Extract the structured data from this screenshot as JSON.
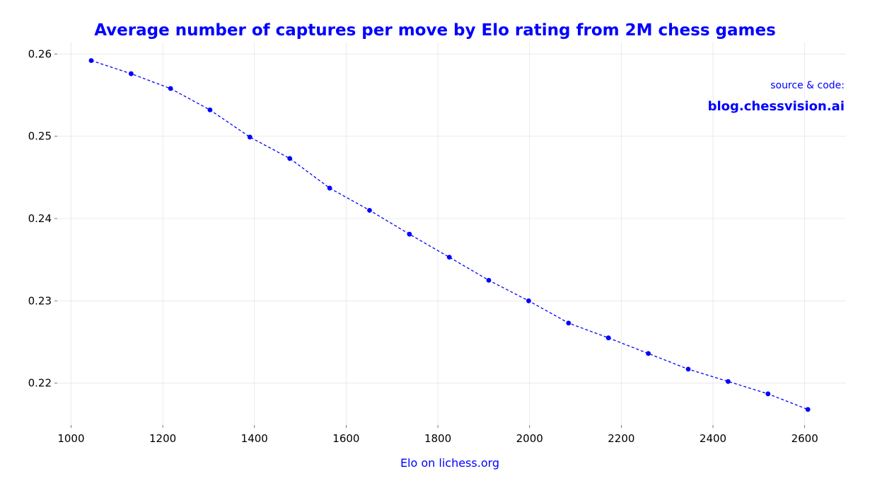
{
  "chart_data": {
    "type": "line",
    "title": "Average number of captures per move by Elo rating from 2M chess games",
    "xlabel": "Elo on lichess.org",
    "ylabel": "",
    "xlim": [
      970,
      2690
    ],
    "ylim": [
      0.2149,
      0.2614
    ],
    "xticks": [
      1000,
      1200,
      1400,
      1600,
      1800,
      2000,
      2200,
      2400,
      2600
    ],
    "yticks": [
      0.22,
      0.23,
      0.24,
      0.25,
      0.26
    ],
    "xtick_labels": [
      "1000",
      "1200",
      "1400",
      "1600",
      "1800",
      "2000",
      "2200",
      "2400",
      "2600"
    ],
    "ytick_labels": [
      "0.22",
      "0.23",
      "0.24",
      "0.25",
      "0.26"
    ],
    "grid": true,
    "series": [
      {
        "color": "#0000ff",
        "line_style": "dashed",
        "marker": "circle",
        "x": [
          1044,
          1131,
          1217,
          1303,
          1390,
          1477,
          1564,
          1651,
          1738,
          1825,
          1911,
          1998,
          2085,
          2172,
          2259,
          2346,
          2433,
          2520,
          2607
        ],
        "y": [
          0.2592,
          0.2576,
          0.2558,
          0.2532,
          0.2499,
          0.2473,
          0.2437,
          0.241,
          0.2381,
          0.2353,
          0.2325,
          0.23,
          0.2273,
          0.2255,
          0.2236,
          0.2217,
          0.2202,
          0.2187,
          0.2168
        ]
      }
    ]
  },
  "source": {
    "label": "source & code:",
    "url_text": "blog.chessvision.ai"
  }
}
